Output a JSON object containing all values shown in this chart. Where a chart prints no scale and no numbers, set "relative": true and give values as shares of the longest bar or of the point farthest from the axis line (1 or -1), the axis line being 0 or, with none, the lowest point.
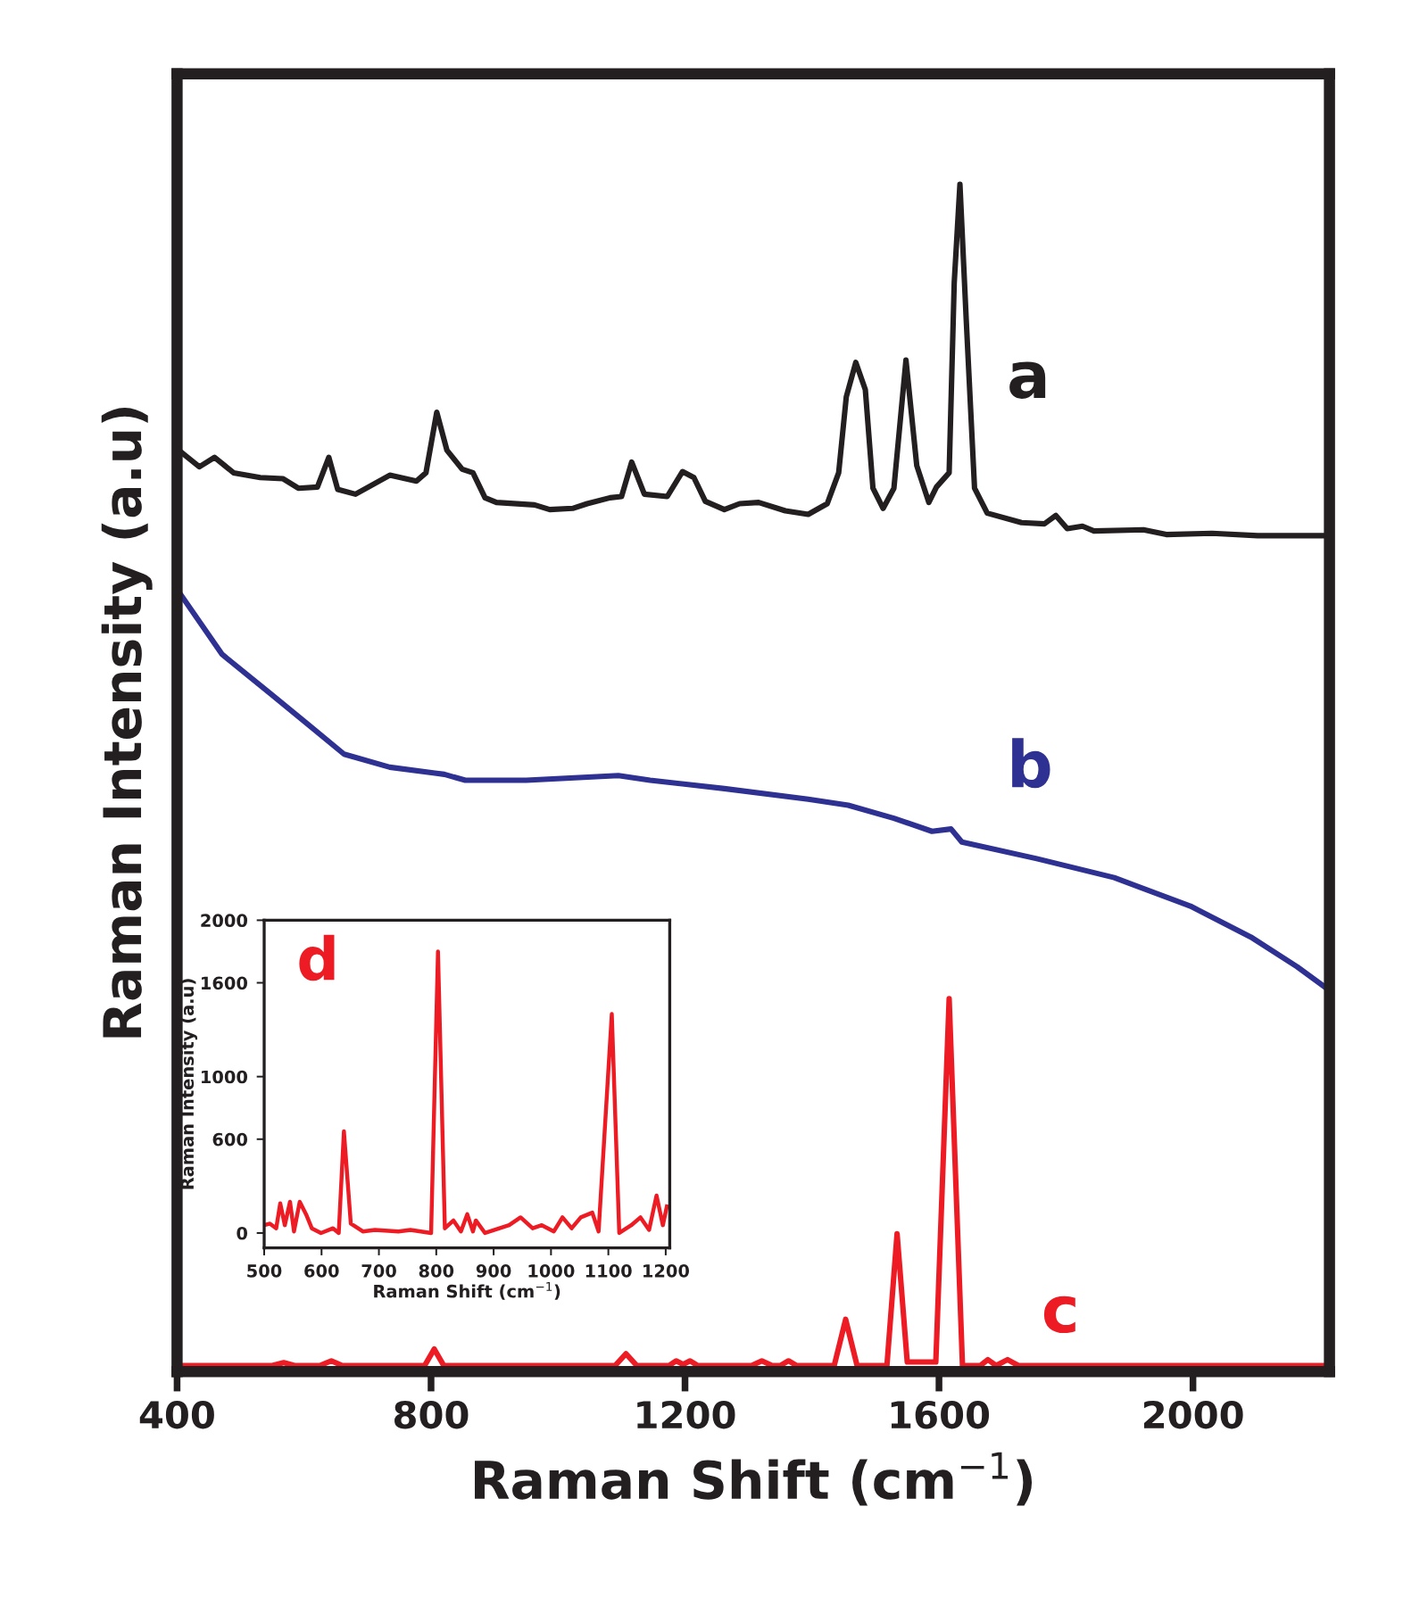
{
  "chart_data": [
    {
      "type": "line",
      "xlabel": "Raman Shift (cm$^{−1}$)",
      "ylabel": "Raman Intensity (a.u)",
      "relative": true,
      "xlim": [
        400,
        2215
      ],
      "xticks": [
        400,
        800,
        1200,
        1600,
        2000
      ],
      "tick_labels": "x",
      "legend": false,
      "grid": false,
      "series": [
        {
          "name": "a",
          "color": "#231f20",
          "x": [
            405,
            435,
            459,
            489,
            531,
            567,
            591,
            621,
            639,
            653,
            681,
            735,
            777,
            792,
            809,
            825,
            849,
            866,
            885,
            903,
            963,
            987,
            1023,
            1046,
            1082,
            1100,
            1116,
            1136,
            1172,
            1196,
            1214,
            1232,
            1262,
            1286,
            1316,
            1358,
            1394,
            1424,
            1442,
            1454,
            1469,
            1484,
            1496,
            1512,
            1529,
            1548,
            1565,
            1584,
            1596,
            1616,
            1624,
            1633,
            1643,
            1656,
            1676,
            1730,
            1766,
            1784,
            1802,
            1826,
            1844,
            1922,
            1958,
            2030,
            2102,
            2210
          ],
          "values": [
            0.775,
            0.762,
            0.77,
            0.757,
            0.753,
            0.752,
            0.744,
            0.745,
            0.77,
            0.743,
            0.739,
            0.755,
            0.75,
            0.757,
            0.808,
            0.776,
            0.76,
            0.757,
            0.736,
            0.732,
            0.73,
            0.726,
            0.727,
            0.731,
            0.736,
            0.737,
            0.766,
            0.739,
            0.737,
            0.758,
            0.753,
            0.733,
            0.726,
            0.731,
            0.732,
            0.725,
            0.722,
            0.731,
            0.757,
            0.821,
            0.85,
            0.827,
            0.744,
            0.727,
            0.744,
            0.852,
            0.763,
            0.732,
            0.745,
            0.757,
            0.917,
            1.0,
            0.885,
            0.744,
            0.723,
            0.715,
            0.714,
            0.721,
            0.71,
            0.712,
            0.708,
            0.709,
            0.705,
            0.706,
            0.704,
            0.704
          ]
        },
        {
          "name": "b",
          "color": "#2e3192",
          "x": [
            405,
            471,
            547,
            604,
            663,
            735,
            806,
            821,
            854,
            950,
            1095,
            1145,
            1262,
            1394,
            1457,
            1529,
            1589,
            1619,
            1636,
            1754,
            1876,
            1996,
            2091,
            2164,
            2210
          ],
          "values": [
            0.655,
            0.604,
            0.571,
            0.546,
            0.52,
            0.509,
            0.504,
            0.503,
            0.498,
            0.498,
            0.502,
            0.498,
            0.491,
            0.482,
            0.477,
            0.466,
            0.455,
            0.457,
            0.446,
            0.432,
            0.416,
            0.392,
            0.366,
            0.341,
            0.323
          ]
        },
        {
          "name": "c",
          "color": "#ed1c24",
          "x": [
            405,
            550,
            568,
            585,
            625,
            643,
            660,
            790,
            805,
            820,
            1090,
            1107,
            1124,
            1175,
            1186,
            1197,
            1208,
            1220,
            1305,
            1321,
            1337,
            1350,
            1363,
            1376,
            1435,
            1453,
            1471,
            1518,
            1534,
            1550,
            1595,
            1616,
            1637,
            1665,
            1677,
            1690,
            1708,
            1725,
            2210
          ],
          "values": [
            0.005,
            0.005,
            0.0075,
            0.005,
            0.005,
            0.009,
            0.005,
            0.005,
            0.019,
            0.005,
            0.005,
            0.015,
            0.005,
            0.005,
            0.009,
            0.006,
            0.009,
            0.005,
            0.005,
            0.009,
            0.005,
            0.005,
            0.009,
            0.005,
            0.005,
            0.044,
            0.005,
            0.005,
            0.116,
            0.008,
            0.008,
            0.314,
            0.005,
            0.005,
            0.01,
            0.005,
            0.01,
            0.005,
            0.005
          ]
        }
      ]
    },
    {
      "type": "line",
      "xlabel": "Raman Shift (cm$^{−1}$)",
      "ylabel": "Raman Intensity (a.u)",
      "xlim": [
        500,
        1207
      ],
      "ylim": [
        -95,
        2000
      ],
      "xticks": [
        500,
        600,
        700,
        800,
        900,
        1000,
        1100,
        1200
      ],
      "yticks": [
        0,
        600,
        1000,
        1600,
        2000
      ],
      "legend": false,
      "grid": false,
      "series": [
        {
          "name": "d",
          "color": "#ed1c24",
          "x": [
            500,
            510,
            521,
            528,
            536,
            545,
            552,
            562,
            573,
            583,
            599,
            620,
            630,
            639,
            651,
            672,
            693,
            734,
            755,
            791,
            803,
            815,
            830,
            843,
            854,
            864,
            869,
            885,
            927,
            947,
            968,
            984,
            1005,
            1020,
            1036,
            1052,
            1072,
            1083,
            1106,
            1119,
            1140,
            1156,
            1171,
            1184,
            1195,
            1202
          ],
          "values": [
            50,
            60,
            30,
            190,
            50,
            200,
            10,
            200,
            120,
            30,
            0,
            30,
            0,
            650,
            60,
            10,
            20,
            10,
            20,
            0,
            1800,
            30,
            80,
            10,
            120,
            10,
            80,
            0,
            50,
            100,
            30,
            50,
            10,
            100,
            30,
            100,
            130,
            10,
            1400,
            0,
            50,
            100,
            20,
            240,
            50,
            170
          ]
        }
      ]
    }
  ]
}
